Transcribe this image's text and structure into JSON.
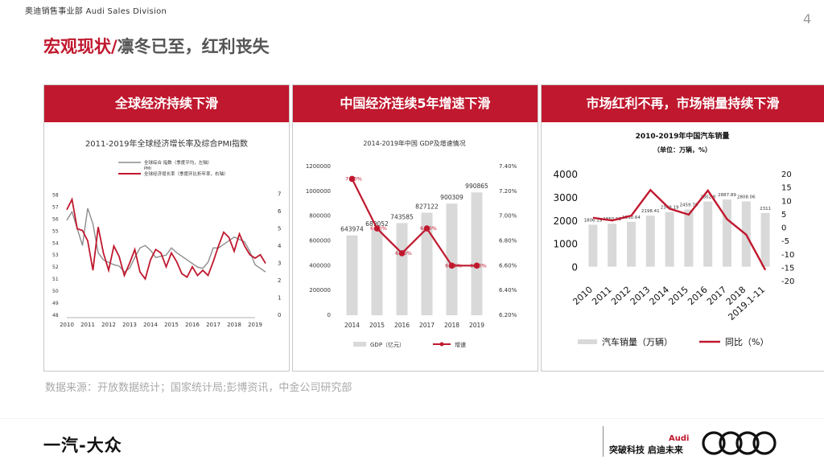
{
  "header": {
    "division": "奥迪销售事业部 Audi Sales Division",
    "page_number": "4",
    "title_red": "宏观现状/",
    "title_rest": "凛冬已至，红利丧失"
  },
  "panels": [
    {
      "heading": "全球经济持续下滑"
    },
    {
      "heading": "中国经济连续5年增速下滑"
    },
    {
      "heading": "市场红利不再，市场销量持续下滑"
    }
  ],
  "source_note": "数据来源：开放数据统计；国家统计局;彭博资讯，中金公司研究部",
  "footer": {
    "left_brand": "一汽-大众",
    "slogan": "突破科技 启迪未来",
    "audi_word": "Audi"
  },
  "colors": {
    "brand_red": "#c0182e",
    "bar_gray": "#d9d9d9",
    "line_gray": "#8c8c8c"
  },
  "chart_data": [
    {
      "type": "line",
      "title": "2011-2019年全球经济增长率及综合PMI指数",
      "x_ticks": [
        "2010",
        "2011",
        "2012",
        "2013",
        "2014",
        "2015",
        "2016",
        "2017",
        "2018",
        "2019"
      ],
      "y_left_ticks": [
        "58",
        "57",
        "56",
        "55",
        "54",
        "53",
        "52",
        "51",
        "50",
        "49",
        "48"
      ],
      "y_right_ticks": [
        "7",
        "6",
        "5",
        "4",
        "3",
        "2",
        "1",
        "0"
      ],
      "ylim_left": [
        48,
        58.5
      ],
      "ylim_right": [
        0,
        7.3
      ],
      "legend": [
        "全球综合 指数（季度平均，左轴）",
        "全球经济增长率（季度环比折年率，右轴）"
      ],
      "legend_extra": "PMI",
      "series": [
        {
          "name": "全球综合 指数（季度平均，左轴）",
          "axis": "left",
          "x": [
            2010.0,
            2010.25,
            2010.5,
            2010.75,
            2011.0,
            2011.25,
            2011.5,
            2011.75,
            2012.0,
            2012.25,
            2012.5,
            2012.75,
            2013.0,
            2013.25,
            2013.5,
            2013.75,
            2014.0,
            2014.25,
            2014.5,
            2014.75,
            2015.0,
            2015.25,
            2015.5,
            2015.75,
            2016.0,
            2016.25,
            2016.5,
            2016.75,
            2017.0,
            2017.25,
            2017.5,
            2017.75,
            2018.0,
            2018.25,
            2018.5,
            2018.75,
            2019.0,
            2019.25,
            2019.5
          ],
          "values": [
            55.9,
            56.6,
            55.2,
            53.8,
            56.9,
            55.6,
            53.2,
            52.6,
            52.4,
            52.2,
            52.1,
            51.6,
            51.9,
            52.8,
            53.6,
            53.8,
            53.4,
            52.8,
            52.9,
            53.0,
            53.6,
            53.2,
            52.9,
            52.6,
            52.3,
            52.0,
            51.9,
            52.4,
            53.6,
            53.6,
            53.9,
            54.2,
            54.5,
            54.3,
            54.1,
            53.3,
            52.2,
            51.9,
            51.6
          ]
        },
        {
          "name": "全球经济增长率（季度环比折年率，右轴）",
          "axis": "right",
          "x": [
            2010.0,
            2010.25,
            2010.5,
            2010.75,
            2011.0,
            2011.25,
            2011.5,
            2011.75,
            2012.0,
            2012.25,
            2012.5,
            2012.75,
            2013.0,
            2013.25,
            2013.5,
            2013.75,
            2014.0,
            2014.25,
            2014.5,
            2014.75,
            2015.0,
            2015.25,
            2015.5,
            2015.75,
            2016.0,
            2016.25,
            2016.5,
            2016.75,
            2017.0,
            2017.25,
            2017.5,
            2017.75,
            2018.0,
            2018.25,
            2018.5,
            2018.75,
            2019.0,
            2019.25,
            2019.5
          ],
          "values": [
            6.1,
            6.7,
            5.0,
            4.9,
            4.3,
            2.6,
            5.1,
            3.6,
            2.6,
            4.0,
            3.4,
            2.3,
            3.0,
            3.8,
            2.5,
            2.1,
            3.2,
            3.8,
            3.6,
            2.8,
            3.6,
            3.1,
            2.4,
            2.2,
            2.8,
            2.3,
            2.6,
            2.3,
            3.1,
            4.0,
            4.8,
            4.5,
            3.7,
            4.7,
            4.0,
            3.5,
            3.3,
            3.5,
            3.0
          ]
        }
      ]
    },
    {
      "type": "bar",
      "title": "2014-2019年中国 GDP及增速情况",
      "categories": [
        "2014",
        "2015",
        "2016",
        "2017",
        "2018",
        "2019"
      ],
      "y_left_ticks": [
        "1200000",
        "1000000",
        "800000",
        "600000",
        "400000",
        "200000",
        "0"
      ],
      "y_right_ticks": [
        "7.40%",
        "7.20%",
        "7.00%",
        "6.80%",
        "6.60%",
        "6.40%",
        "6.20%"
      ],
      "ylim_left": [
        0,
        1200000
      ],
      "ylim_right": [
        6.2,
        7.4
      ],
      "legend": [
        "GDP（亿元）",
        "增速"
      ],
      "series": [
        {
          "name": "GDP（亿元）",
          "type": "bar",
          "values": [
            643974,
            689052,
            743585,
            827122,
            900309,
            990865
          ],
          "labels": [
            "643974",
            "689052",
            "743585",
            "827122",
            "900309",
            "990865"
          ]
        },
        {
          "name": "增速",
          "type": "line",
          "values": [
            7.3,
            6.9,
            6.7,
            6.9,
            6.6,
            6.6
          ],
          "labels": [
            "7.30%",
            "6.90%",
            "6.70%",
            "6.90%",
            "6.60%",
            "6.60%"
          ]
        }
      ]
    },
    {
      "type": "bar",
      "title": "2010-2019年中国汽车销量",
      "subtitle": "（单位：万辆，%）",
      "categories": [
        "2010",
        "2011",
        "2012",
        "2013",
        "2014",
        "2015",
        "2016",
        "2017",
        "2018",
        "2019.1-11"
      ],
      "y_left_ticks": [
        "4000",
        "3000",
        "2000",
        "1000",
        "0"
      ],
      "y_right_ticks": [
        "20",
        "15",
        "10",
        "5",
        "0",
        "-5",
        "-10",
        "-15",
        "-20"
      ],
      "ylim_left": [
        -600,
        4000
      ],
      "ylim_right": [
        -20,
        20
      ],
      "legend": [
        "汽车销量（万辆）",
        "同比（%）"
      ],
      "series": [
        {
          "name": "汽车销量（万辆）",
          "type": "bar",
          "values": [
            1806.19,
            1850.51,
            1930.64,
            2198.41,
            2349.19,
            2459.76,
            2802.8,
            2887.89,
            2808.06,
            2311
          ],
          "labels": [
            "1806.19",
            "1850.51",
            "1930.64",
            "2198.41",
            "2349.19",
            "2459.76",
            "2802.8",
            "2887.89",
            "2808.06",
            "2311"
          ]
        },
        {
          "name": "同比（%）",
          "type": "line",
          "values": [
            3.5,
            2.5,
            4.3,
            13.9,
            6.9,
            4.7,
            13.7,
            3.0,
            -2.8,
            -16.0
          ]
        }
      ]
    }
  ]
}
